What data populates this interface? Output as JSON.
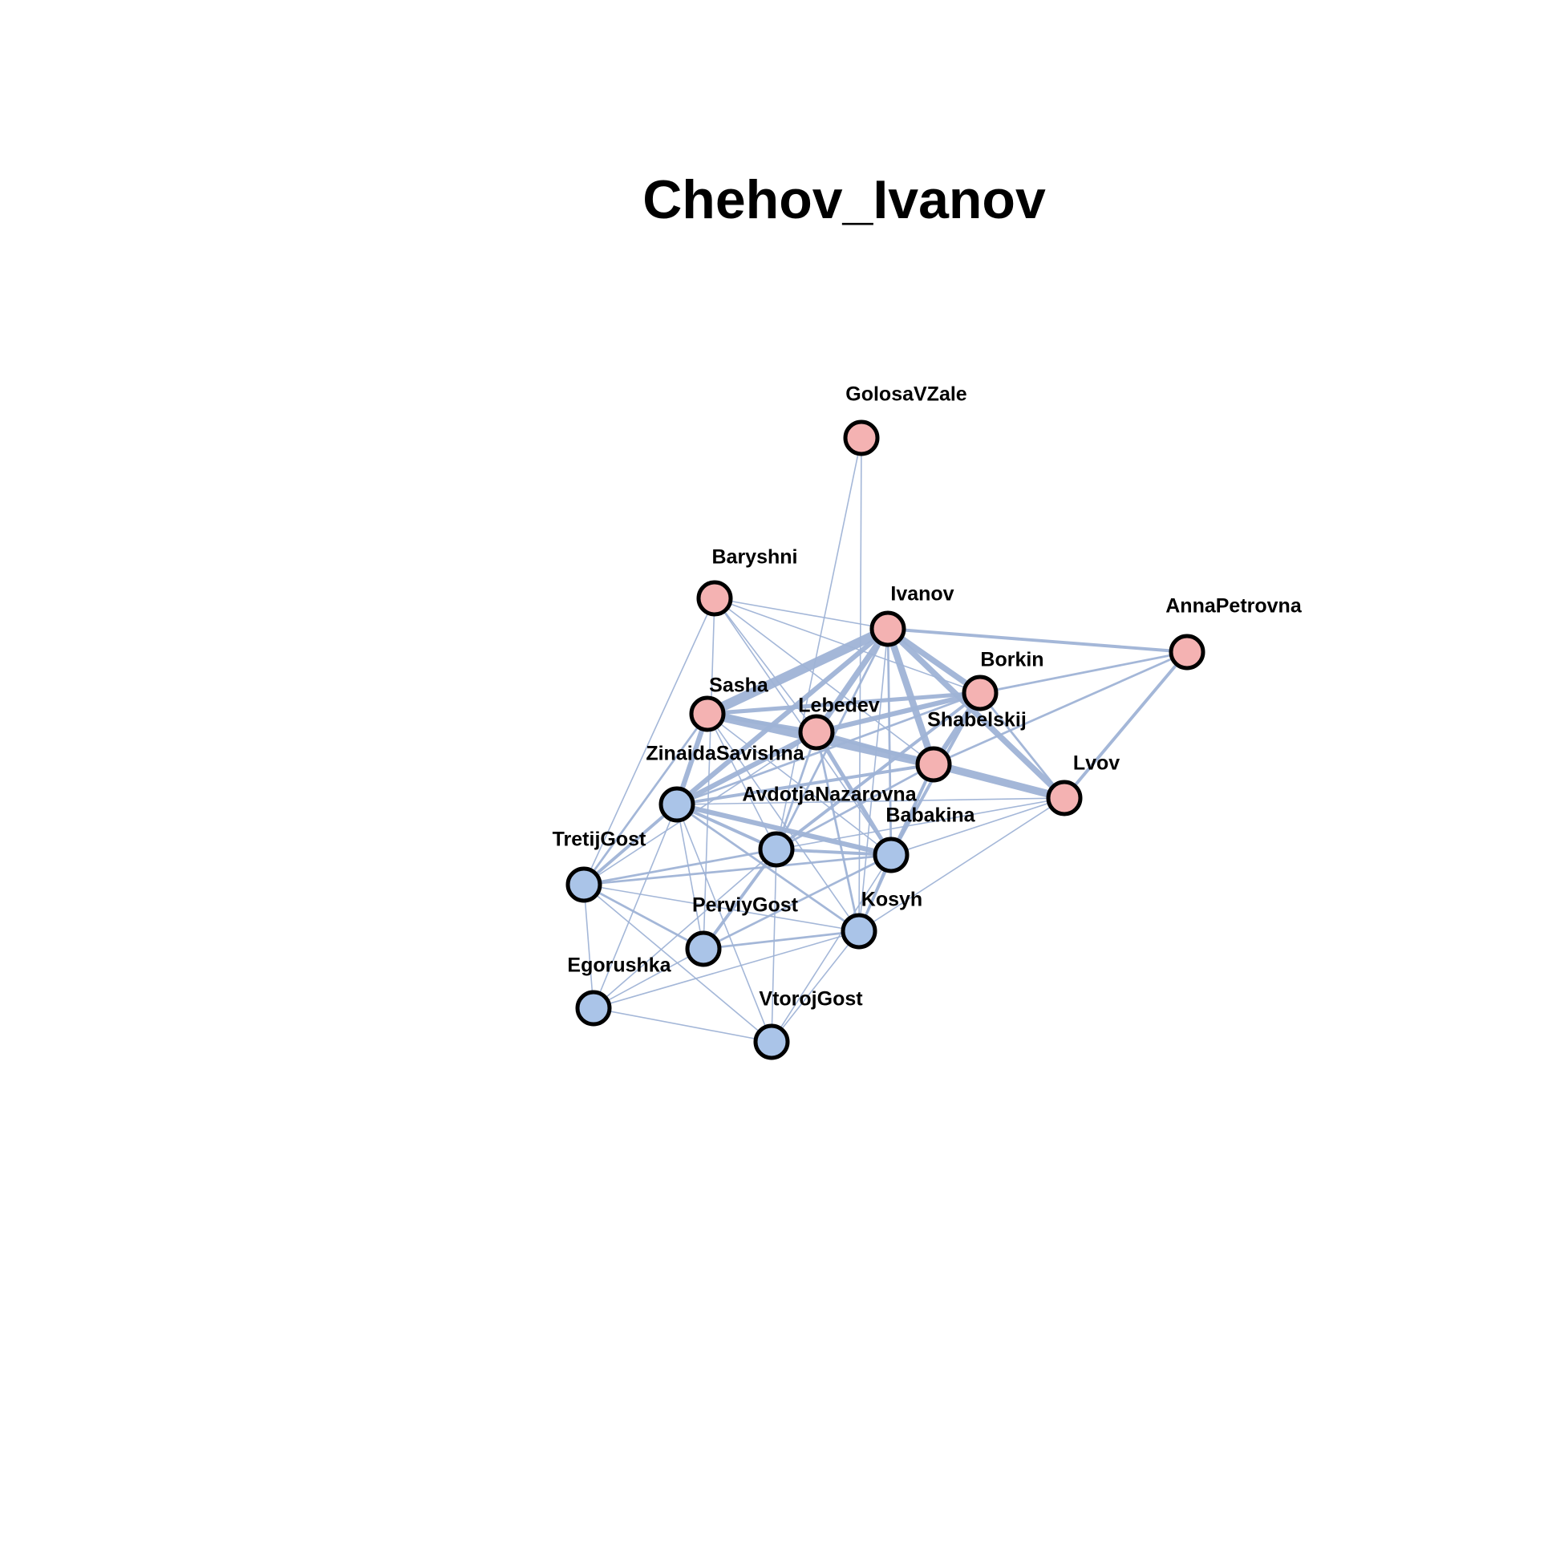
{
  "title": "Chehov_Ivanov",
  "colors": {
    "edge": "#9fb3d6",
    "group_pink": "#f4b2b2",
    "group_blue": "#aac4e8",
    "node_stroke": "#000000",
    "label": "#000000"
  },
  "nodes": [
    {
      "id": "GolosaVZale",
      "label": "GolosaVZale",
      "group": "pink"
    },
    {
      "id": "Baryshni",
      "label": "Baryshni",
      "group": "pink"
    },
    {
      "id": "Ivanov",
      "label": "Ivanov",
      "group": "pink"
    },
    {
      "id": "AnnaPetrovna",
      "label": "AnnaPetrovna",
      "group": "pink"
    },
    {
      "id": "Borkin",
      "label": "Borkin",
      "group": "pink"
    },
    {
      "id": "Sasha",
      "label": "Sasha",
      "group": "pink"
    },
    {
      "id": "Lebedev",
      "label": "Lebedev",
      "group": "pink"
    },
    {
      "id": "Shabelskij",
      "label": "Shabelskij",
      "group": "pink"
    },
    {
      "id": "Lvov",
      "label": "Lvov",
      "group": "pink"
    },
    {
      "id": "ZinaidaSavishna",
      "label": "ZinaidaSavishna",
      "group": "blue"
    },
    {
      "id": "AvdotjaNazarovna",
      "label": "AvdotjaNazarovna",
      "group": "blue"
    },
    {
      "id": "Babakina",
      "label": "Babakina",
      "group": "blue"
    },
    {
      "id": "TretijGost",
      "label": "TretijGost",
      "group": "blue"
    },
    {
      "id": "Kosyh",
      "label": "Kosyh",
      "group": "blue"
    },
    {
      "id": "PerviyGost",
      "label": "PerviyGost",
      "group": "blue"
    },
    {
      "id": "Egorushka",
      "label": "Egorushka",
      "group": "blue"
    },
    {
      "id": "VtorojGost",
      "label": "VtorojGost",
      "group": "blue"
    }
  ],
  "edges": [
    {
      "source": "Ivanov",
      "target": "Sasha",
      "weight": 10
    },
    {
      "source": "Sasha",
      "target": "Shabelskij",
      "weight": 9
    },
    {
      "source": "Shabelskij",
      "target": "Lvov",
      "weight": 8
    },
    {
      "source": "Ivanov",
      "target": "Lvov",
      "weight": 6
    },
    {
      "source": "Ivanov",
      "target": "Shabelskij",
      "weight": 7
    },
    {
      "source": "Ivanov",
      "target": "Lebedev",
      "weight": 6
    },
    {
      "source": "Ivanov",
      "target": "Borkin",
      "weight": 6
    },
    {
      "source": "Ivanov",
      "target": "ZinaidaSavishna",
      "weight": 5
    },
    {
      "source": "Sasha",
      "target": "ZinaidaSavishna",
      "weight": 5
    },
    {
      "source": "Lebedev",
      "target": "ZinaidaSavishna",
      "weight": 5
    },
    {
      "source": "Lebedev",
      "target": "Borkin",
      "weight": 5
    },
    {
      "source": "Borkin",
      "target": "Shabelskij",
      "weight": 5
    },
    {
      "source": "Sasha",
      "target": "Borkin",
      "weight": 4
    },
    {
      "source": "Sasha",
      "target": "Lebedev",
      "weight": 4
    },
    {
      "source": "ZinaidaSavishna",
      "target": "Babakina",
      "weight": 5
    },
    {
      "source": "Lebedev",
      "target": "Shabelskij",
      "weight": 4
    },
    {
      "source": "Ivanov",
      "target": "AnnaPetrovna",
      "weight": 3
    },
    {
      "source": "AnnaPetrovna",
      "target": "Lvov",
      "weight": 3
    },
    {
      "source": "AnnaPetrovna",
      "target": "Shabelskij",
      "weight": 2
    },
    {
      "source": "AnnaPetrovna",
      "target": "Borkin",
      "weight": 2
    },
    {
      "source": "Borkin",
      "target": "Lvov",
      "weight": 2
    },
    {
      "source": "Lebedev",
      "target": "Babakina",
      "weight": 4
    },
    {
      "source": "Shabelskij",
      "target": "Babakina",
      "weight": 3
    },
    {
      "source": "Borkin",
      "target": "Babakina",
      "weight": 3
    },
    {
      "source": "Borkin",
      "target": "AvdotjaNazarovna",
      "weight": 3
    },
    {
      "source": "ZinaidaSavishna",
      "target": "AvdotjaNazarovna",
      "weight": 3
    },
    {
      "source": "ZinaidaSavishna",
      "target": "TretijGost",
      "weight": 3
    },
    {
      "source": "ZinaidaSavishna",
      "target": "Shabelskij",
      "weight": 3
    },
    {
      "source": "AvdotjaNazarovna",
      "target": "Babakina",
      "weight": 3
    },
    {
      "source": "AvdotjaNazarovna",
      "target": "PerviyGost",
      "weight": 3
    },
    {
      "source": "AvdotjaNazarovna",
      "target": "TretijGost",
      "weight": 2
    },
    {
      "source": "Sasha",
      "target": "TretijGost",
      "weight": 2
    },
    {
      "source": "Ivanov",
      "target": "AvdotjaNazarovna",
      "weight": 2
    },
    {
      "source": "Ivanov",
      "target": "Babakina",
      "weight": 2
    },
    {
      "source": "Lebedev",
      "target": "AvdotjaNazarovna",
      "weight": 2
    },
    {
      "source": "Lebedev",
      "target": "Kosyh",
      "weight": 2
    },
    {
      "source": "Babakina",
      "target": "TretijGost",
      "weight": 2
    },
    {
      "source": "Babakina",
      "target": "Kosyh",
      "weight": 2
    },
    {
      "source": "Shabelskij",
      "target": "Kosyh",
      "weight": 2
    },
    {
      "source": "Kosyh",
      "target": "PerviyGost",
      "weight": 2
    },
    {
      "source": "Kosyh",
      "target": "Lvov",
      "weight": 1
    },
    {
      "source": "Kosyh",
      "target": "TretijGost",
      "weight": 1
    },
    {
      "source": "Kosyh",
      "target": "Egorushka",
      "weight": 1
    },
    {
      "source": "Kosyh",
      "target": "VtorojGost",
      "weight": 1
    },
    {
      "source": "Kosyh",
      "target": "ZinaidaSavishna",
      "weight": 2
    },
    {
      "source": "PerviyGost",
      "target": "TretijGost",
      "weight": 2
    },
    {
      "source": "PerviyGost",
      "target": "Egorushka",
      "weight": 1
    },
    {
      "source": "PerviyGost",
      "target": "Babakina",
      "weight": 2
    },
    {
      "source": "PerviyGost",
      "target": "ZinaidaSavishna",
      "weight": 1
    },
    {
      "source": "Egorushka",
      "target": "VtorojGost",
      "weight": 1
    },
    {
      "source": "Egorushka",
      "target": "TretijGost",
      "weight": 1
    },
    {
      "source": "Egorushka",
      "target": "ZinaidaSavishna",
      "weight": 1
    },
    {
      "source": "Egorushka",
      "target": "AvdotjaNazarovna",
      "weight": 1
    },
    {
      "source": "VtorojGost",
      "target": "TretijGost",
      "weight": 1
    },
    {
      "source": "VtorojGost",
      "target": "AvdotjaNazarovna",
      "weight": 1
    },
    {
      "source": "VtorojGost",
      "target": "Babakina",
      "weight": 1
    },
    {
      "source": "VtorojGost",
      "target": "ZinaidaSavishna",
      "weight": 1
    },
    {
      "source": "GolosaVZale",
      "target": "AvdotjaNazarovna",
      "weight": 1
    },
    {
      "source": "GolosaVZale",
      "target": "Kosyh",
      "weight": 1
    },
    {
      "source": "Baryshni",
      "target": "Borkin",
      "weight": 1
    },
    {
      "source": "Baryshni",
      "target": "Shabelskij",
      "weight": 1
    },
    {
      "source": "Baryshni",
      "target": "Babakina",
      "weight": 1
    },
    {
      "source": "Baryshni",
      "target": "PerviyGost",
      "weight": 1
    },
    {
      "source": "Baryshni",
      "target": "Ivanov",
      "weight": 1
    },
    {
      "source": "Baryshni",
      "target": "TretijGost",
      "weight": 1
    },
    {
      "source": "Baryshni",
      "target": "Lebedev",
      "weight": 1
    },
    {
      "source": "Sasha",
      "target": "Babakina",
      "weight": 1
    },
    {
      "source": "Sasha",
      "target": "AvdotjaNazarovna",
      "weight": 1
    },
    {
      "source": "Sasha",
      "target": "Kosyh",
      "weight": 1
    },
    {
      "source": "Lvov",
      "target": "ZinaidaSavishna",
      "weight": 1
    },
    {
      "source": "Lvov",
      "target": "AvdotjaNazarovna",
      "weight": 1
    },
    {
      "source": "Lvov",
      "target": "Babakina",
      "weight": 1
    },
    {
      "source": "Ivanov",
      "target": "Kosyh",
      "weight": 1
    },
    {
      "source": "Shabelskij",
      "target": "AvdotjaNazarovna",
      "weight": 2
    },
    {
      "source": "Borkin",
      "target": "ZinaidaSavishna",
      "weight": 2
    },
    {
      "source": "TretijGost",
      "target": "Lebedev",
      "weight": 1
    }
  ]
}
